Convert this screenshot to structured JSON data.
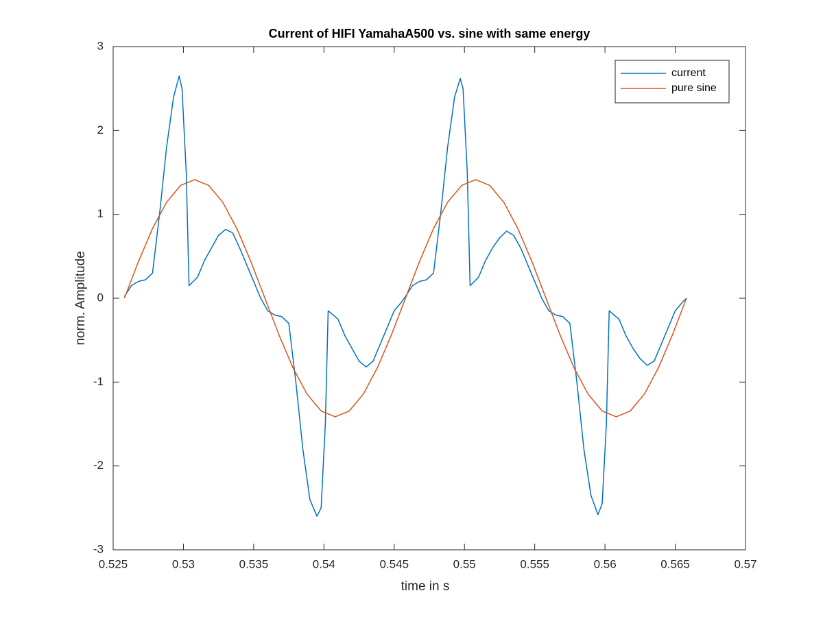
{
  "chart_data": {
    "type": "line",
    "title": "Current of HIFI YamahaA500 vs. sine with same energy",
    "x_label": "time in s",
    "y_label": "norm. Amplitude",
    "xlim": [
      0.525,
      0.57
    ],
    "xticks": [
      0.525,
      0.53,
      0.535,
      0.54,
      0.545,
      0.55,
      0.555,
      0.56,
      0.565,
      0.57
    ],
    "ylim": [
      -3,
      3
    ],
    "yticks": [
      -3,
      -2,
      -1,
      0,
      1,
      2,
      3
    ],
    "grid": false,
    "legend": "top-right",
    "series": [
      {
        "name": "current",
        "color": "#0072bd",
        "x": [
          0.5258,
          0.5263,
          0.5268,
          0.5273,
          0.5278,
          0.5283,
          0.5288,
          0.5293,
          0.5297,
          0.5299,
          0.5302,
          0.5304,
          0.531,
          0.5315,
          0.532,
          0.5325,
          0.533,
          0.5335,
          0.534,
          0.5345,
          0.535,
          0.5355,
          0.536,
          0.5365,
          0.537,
          0.5375,
          0.538,
          0.5385,
          0.539,
          0.5395,
          0.5398,
          0.5401,
          0.5403,
          0.541,
          0.5415,
          0.542,
          0.5425,
          0.543,
          0.5435,
          0.544,
          0.5445,
          0.545,
          0.5455,
          0.5458,
          0.5463,
          0.5468,
          0.5473,
          0.5478,
          0.5483,
          0.5488,
          0.5493,
          0.5497,
          0.5499,
          0.5502,
          0.5504,
          0.551,
          0.5515,
          0.552,
          0.5525,
          0.553,
          0.5535,
          0.554,
          0.5545,
          0.555,
          0.5555,
          0.556,
          0.5565,
          0.557,
          0.5575,
          0.558,
          0.5585,
          0.559,
          0.5595,
          0.5598,
          0.5601,
          0.5603,
          0.561,
          0.5615,
          0.562,
          0.5625,
          0.563,
          0.5635,
          0.564,
          0.5645,
          0.565,
          0.5655,
          0.5658
        ],
        "values": [
          0.02,
          0.15,
          0.2,
          0.22,
          0.3,
          1.0,
          1.8,
          2.4,
          2.65,
          2.5,
          1.5,
          0.15,
          0.25,
          0.45,
          0.6,
          0.75,
          0.82,
          0.78,
          0.6,
          0.4,
          0.2,
          0.0,
          -0.15,
          -0.2,
          -0.22,
          -0.3,
          -1.0,
          -1.8,
          -2.4,
          -2.6,
          -2.5,
          -1.5,
          -0.15,
          -0.25,
          -0.45,
          -0.6,
          -0.75,
          -0.82,
          -0.75,
          -0.55,
          -0.35,
          -0.15,
          -0.05,
          0.02,
          0.15,
          0.2,
          0.22,
          0.3,
          1.0,
          1.8,
          2.4,
          2.62,
          2.5,
          1.5,
          0.15,
          0.25,
          0.45,
          0.6,
          0.72,
          0.8,
          0.75,
          0.6,
          0.4,
          0.2,
          0.0,
          -0.15,
          -0.2,
          -0.22,
          -0.3,
          -1.0,
          -1.8,
          -2.35,
          -2.58,
          -2.45,
          -1.5,
          -0.15,
          -0.25,
          -0.45,
          -0.6,
          -0.72,
          -0.8,
          -0.75,
          -0.55,
          -0.35,
          -0.15,
          -0.05,
          0.0
        ]
      },
      {
        "name": "pure sine",
        "color": "#d95319",
        "x": [
          0.5258,
          0.5268,
          0.5278,
          0.5288,
          0.5298,
          0.5308,
          0.5318,
          0.5328,
          0.5338,
          0.5348,
          0.5358,
          0.5368,
          0.5378,
          0.5388,
          0.5398,
          0.5408,
          0.5418,
          0.5428,
          0.5438,
          0.5448,
          0.5458,
          0.5468,
          0.5478,
          0.5488,
          0.5498,
          0.5508,
          0.5518,
          0.5528,
          0.5538,
          0.5548,
          0.5558,
          0.5568,
          0.5578,
          0.5588,
          0.5598,
          0.5608,
          0.5618,
          0.5628,
          0.5638,
          0.5648,
          0.5658
        ],
        "values": [
          0,
          0.437,
          0.831,
          1.144,
          1.345,
          1.414,
          1.345,
          1.144,
          0.831,
          0.437,
          0,
          -0.437,
          -0.831,
          -1.144,
          -1.345,
          -1.414,
          -1.345,
          -1.144,
          -0.831,
          -0.437,
          0,
          0.437,
          0.831,
          1.144,
          1.345,
          1.414,
          1.345,
          1.144,
          0.831,
          0.437,
          0,
          -0.437,
          -0.831,
          -1.144,
          -1.345,
          -1.414,
          -1.345,
          -1.144,
          -0.831,
          -0.437,
          0
        ]
      }
    ]
  }
}
